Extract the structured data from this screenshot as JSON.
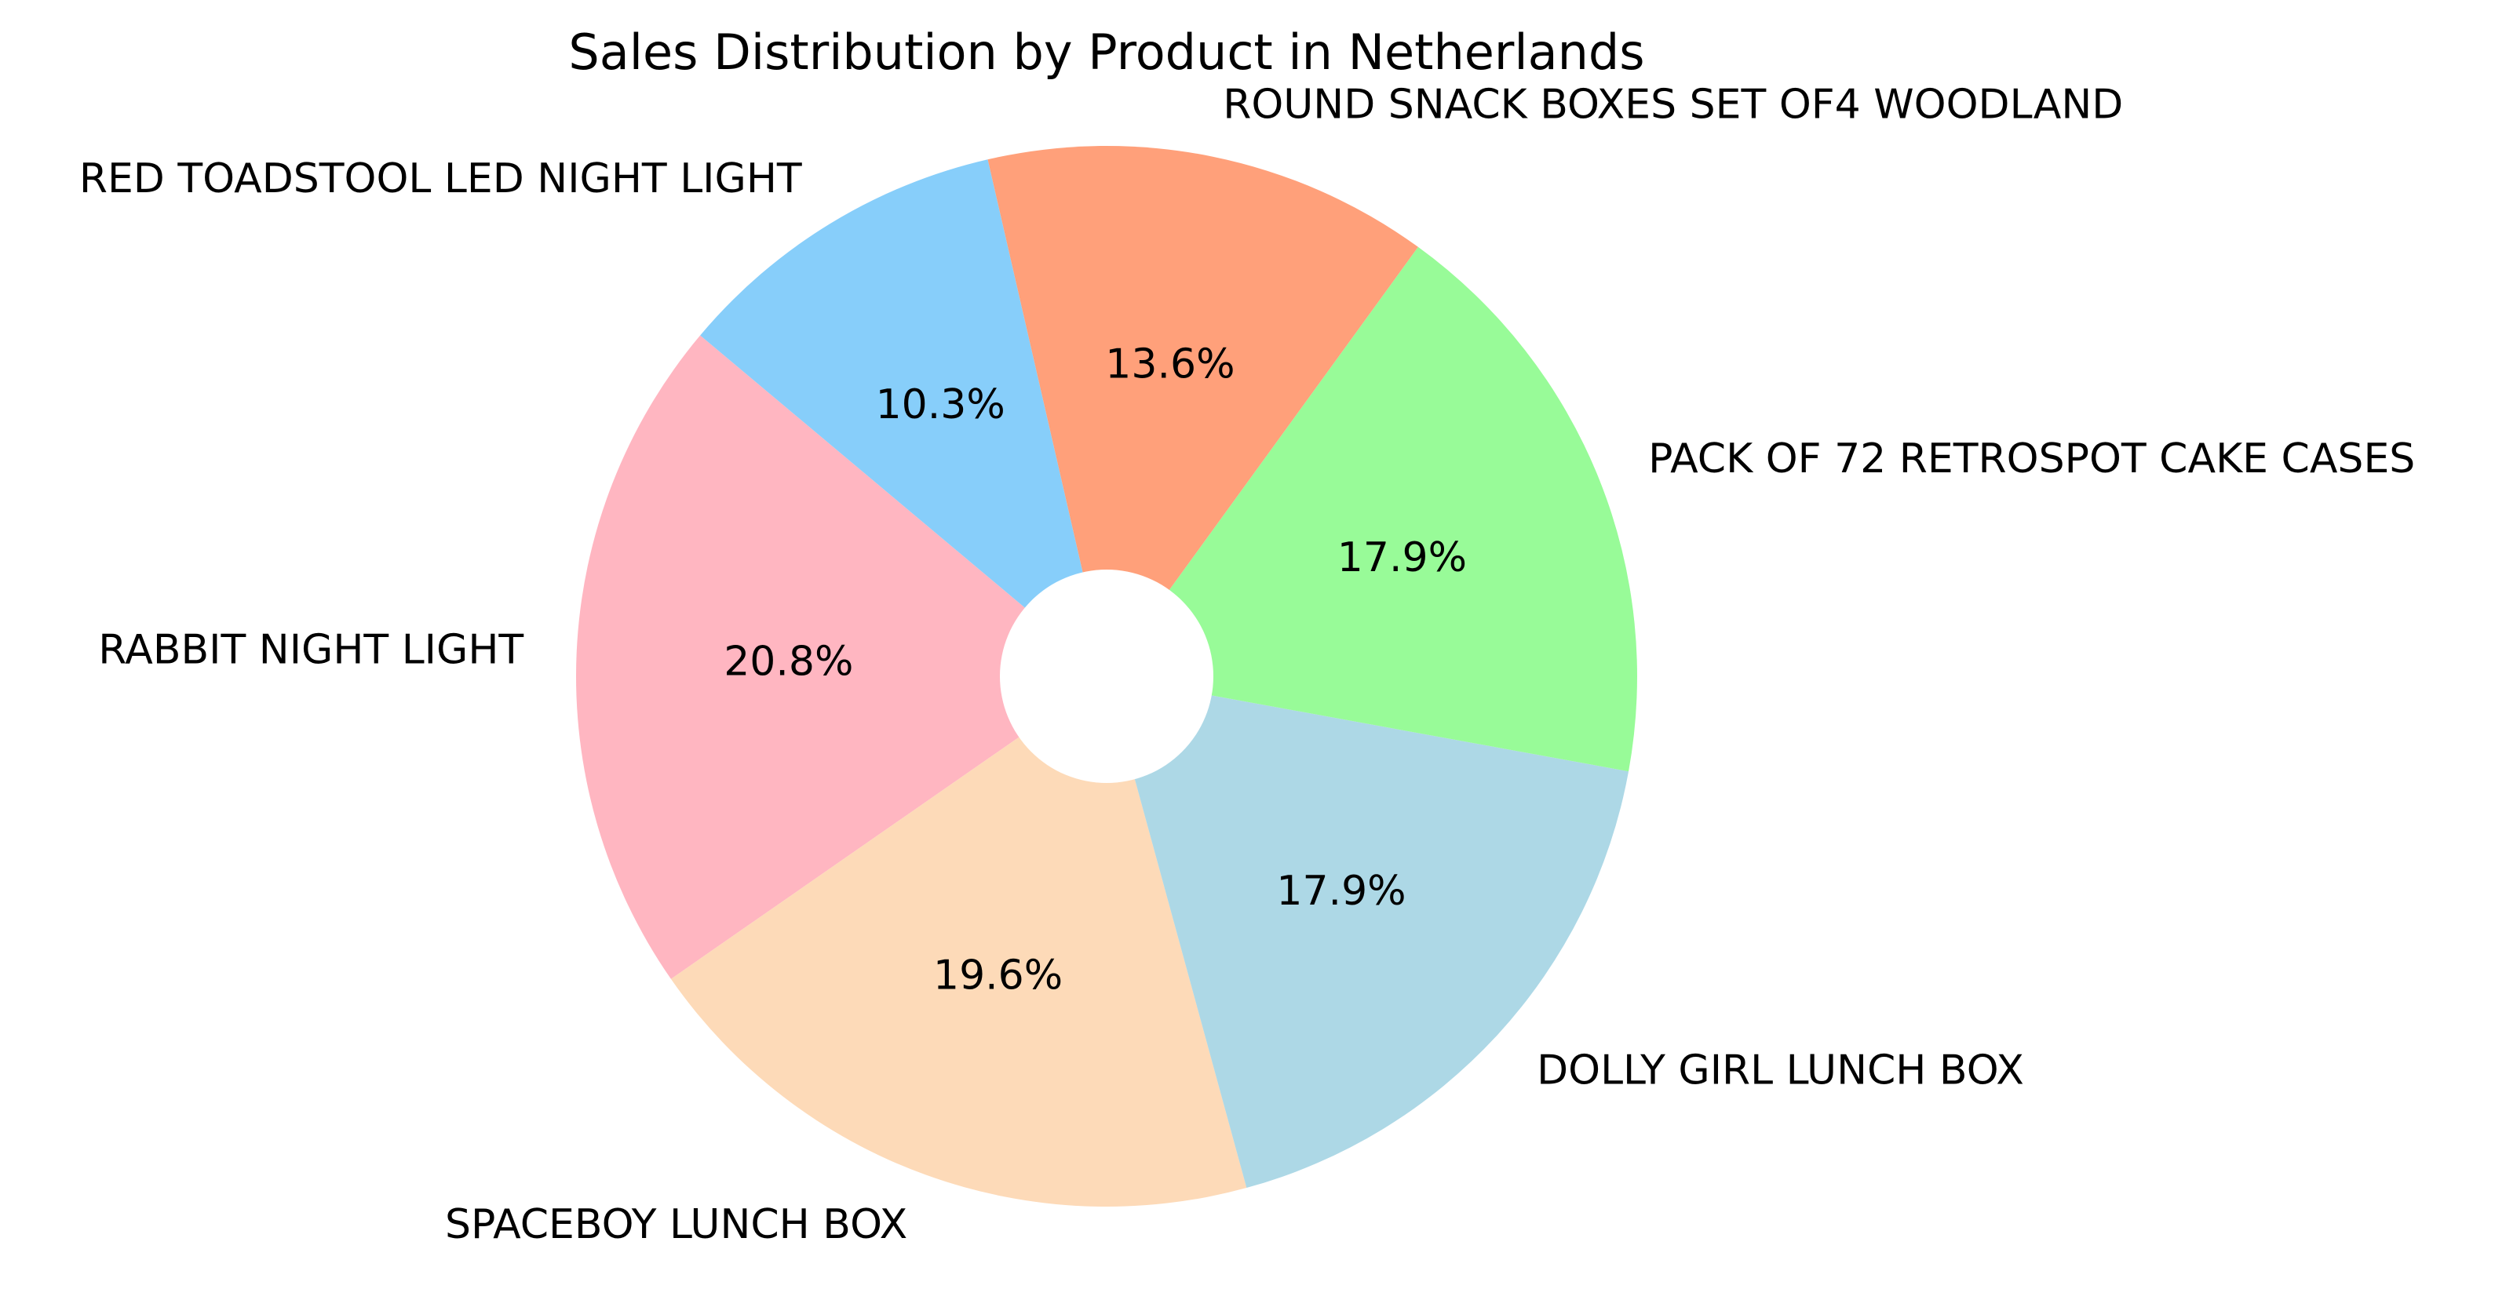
{
  "chart_data": {
    "type": "pie",
    "title": "Sales Distribution by Product in Netherlands",
    "slices": [
      {
        "label": "RABBIT NIGHT LIGHT",
        "value": 20.8,
        "pct_label": "20.8%",
        "color": "#FFB6C1"
      },
      {
        "label": "SPACEBOY LUNCH BOX",
        "value": 19.6,
        "pct_label": "19.6%",
        "color": "#FDDAB8"
      },
      {
        "label": "DOLLY GIRL LUNCH BOX",
        "value": 17.9,
        "pct_label": "17.9%",
        "color": "#ADD8E6"
      },
      {
        "label": "PACK OF 72 RETROSPOT CAKE CASES",
        "value": 17.9,
        "pct_label": "17.9%",
        "color": "#98FB98"
      },
      {
        "label": "ROUND SNACK BOXES SET OF4 WOODLAND",
        "value": 13.6,
        "pct_label": "13.6%",
        "color": "#FFA07A"
      },
      {
        "label": "RED TOADSTOOL LED NIGHT LIGHT",
        "value": 10.3,
        "pct_label": "10.3%",
        "color": "#87CEFA"
      }
    ],
    "start_angle_deg": 140,
    "direction": "counterclockwise",
    "donut_hole": true
  }
}
